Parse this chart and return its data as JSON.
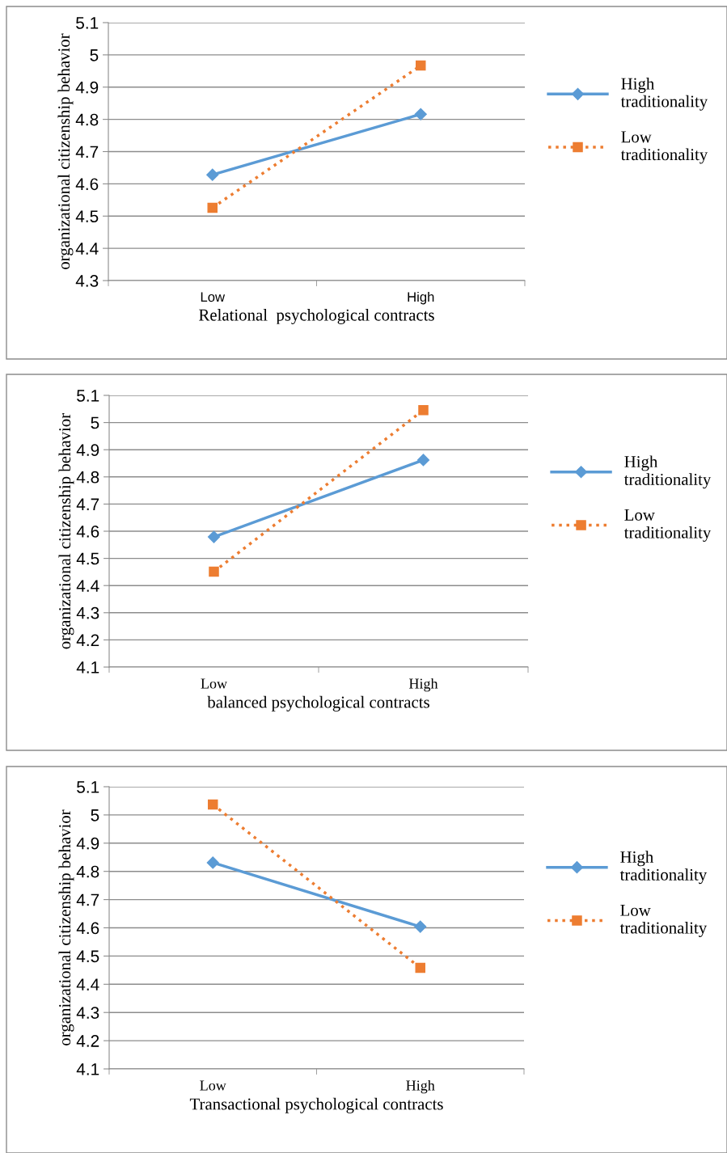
{
  "chart_data": [
    {
      "type": "line",
      "xlabel": "Relational  psychological contracts",
      "ylabel": "organizational citizenship behavior",
      "categories": [
        "Low",
        "High"
      ],
      "ylim": [
        4.3,
        5.1
      ],
      "yticks": [
        4.3,
        4.4,
        4.5,
        4.6,
        4.7,
        4.8,
        4.9,
        5,
        5.1
      ],
      "grid": "y",
      "legend": "right",
      "series": [
        {
          "name": "High traditionality",
          "color": "#5b9bd5",
          "values": [
            4.628,
            4.816
          ],
          "marker": "diamond",
          "line_style": "solid"
        },
        {
          "name": "Low traditionality",
          "color": "#ed7d31",
          "values": [
            4.526,
            4.967
          ],
          "marker": "square",
          "line_style": "dotted"
        }
      ]
    },
    {
      "type": "line",
      "xlabel": "balanced psychological contracts",
      "ylabel": "organizational citizenship behavior",
      "categories": [
        "Low",
        "High"
      ],
      "ylim": [
        4.1,
        5.1
      ],
      "yticks": [
        4.1,
        4.2,
        4.3,
        4.4,
        4.5,
        4.6,
        4.7,
        4.8,
        4.9,
        5,
        5.1
      ],
      "grid": "y",
      "legend": "right",
      "series": [
        {
          "name": "High traditionality",
          "color": "#5b9bd5",
          "values": [
            4.579,
            4.862
          ],
          "marker": "diamond",
          "line_style": "solid"
        },
        {
          "name": "Low traditionality",
          "color": "#ed7d31",
          "values": [
            4.451,
            5.046
          ],
          "marker": "square",
          "line_style": "dotted"
        }
      ]
    },
    {
      "type": "line",
      "xlabel": "Transactional psychological contracts",
      "ylabel": "organizational citizenship behavior",
      "categories": [
        "Low",
        "High"
      ],
      "ylim": [
        4.1,
        5.1
      ],
      "yticks": [
        4.1,
        4.2,
        4.3,
        4.4,
        4.5,
        4.6,
        4.7,
        4.8,
        4.9,
        5,
        5.1
      ],
      "grid": "y",
      "legend": "right",
      "series": [
        {
          "name": "High traditionality",
          "color": "#5b9bd5",
          "values": [
            4.831,
            4.604
          ],
          "marker": "diamond",
          "line_style": "solid"
        },
        {
          "name": "Low traditionality",
          "color": "#ed7d31",
          "values": [
            5.037,
            4.458
          ],
          "marker": "square",
          "line_style": "dotted"
        }
      ]
    }
  ]
}
